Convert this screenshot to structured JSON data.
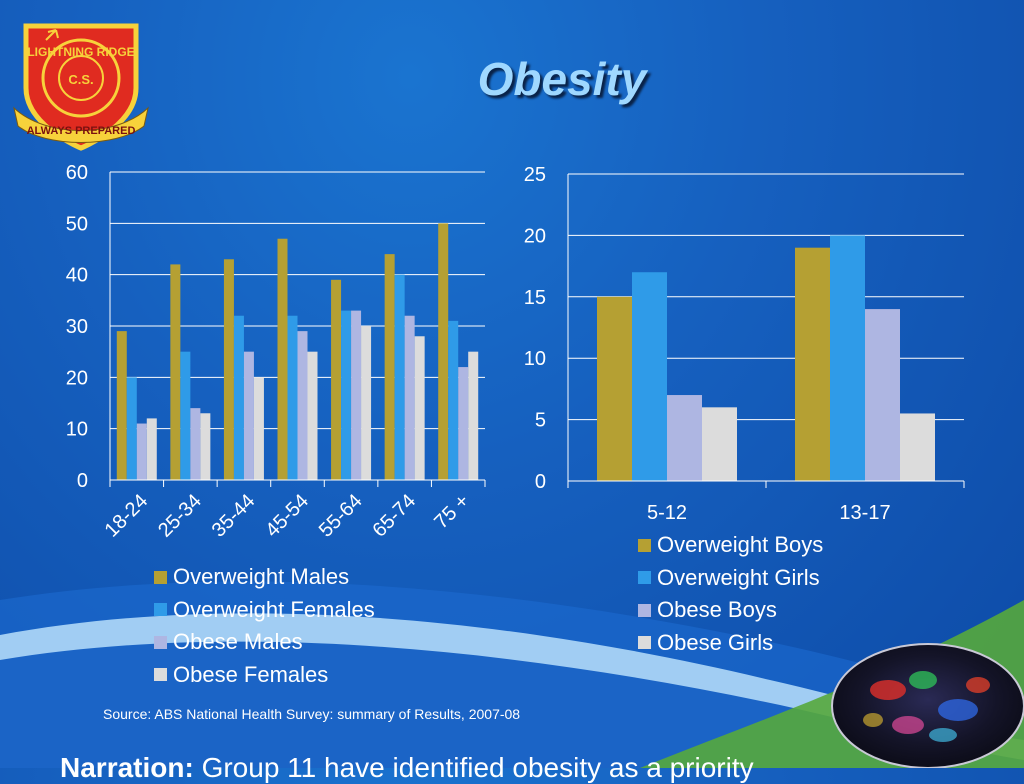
{
  "title": "Obesity",
  "logo": {
    "ring_text_top": "LIGHTNING RIDGE",
    "ring_text_center": "C.S.",
    "ribbon_text": "ALWAYS PREPARED"
  },
  "colors": {
    "overweight_male": "#b5a033",
    "overweight_female": "#2f9be8",
    "obese_male": "#aeb6e2",
    "obese_female": "#dcdcdc"
  },
  "chart_data": [
    {
      "type": "bar",
      "categories": [
        "18-24",
        "25-34",
        "35-44",
        "45-54",
        "55-64",
        "65-74",
        "75 +"
      ],
      "series": [
        {
          "name": "Overweight Males",
          "values": [
            29,
            42,
            43,
            47,
            39,
            44,
            50
          ]
        },
        {
          "name": "Overweight Females",
          "values": [
            20,
            25,
            32,
            32,
            33,
            40,
            31
          ]
        },
        {
          "name": "Obese Males",
          "values": [
            11,
            14,
            25,
            29,
            33,
            32,
            22
          ]
        },
        {
          "name": "Obese Females",
          "values": [
            12,
            13,
            20,
            25,
            30,
            28,
            25
          ]
        }
      ],
      "yticks": [
        "0",
        "10",
        "20",
        "30",
        "40",
        "50",
        "60"
      ],
      "ylim": [
        0,
        60
      ],
      "grid": true,
      "legend": "bottom"
    },
    {
      "type": "bar",
      "categories": [
        "5-12",
        "13-17"
      ],
      "series": [
        {
          "name": "Overweight Boys",
          "values": [
            15,
            19
          ]
        },
        {
          "name": "Overweight Girls",
          "values": [
            17,
            20
          ]
        },
        {
          "name": "Obese Boys",
          "values": [
            7,
            14
          ]
        },
        {
          "name": "Obese Girls",
          "values": [
            6,
            5.5
          ]
        }
      ],
      "yticks": [
        "0",
        "5",
        "10",
        "15",
        "20",
        "25"
      ],
      "ylim": [
        0,
        25
      ],
      "grid": true,
      "legend": "bottom"
    }
  ],
  "source": "Source: ABS National Health Survey: summary of Results, 2007-08",
  "narration": {
    "label": "Narration:",
    "text": "Group 11 have identified obesity as a priority"
  }
}
